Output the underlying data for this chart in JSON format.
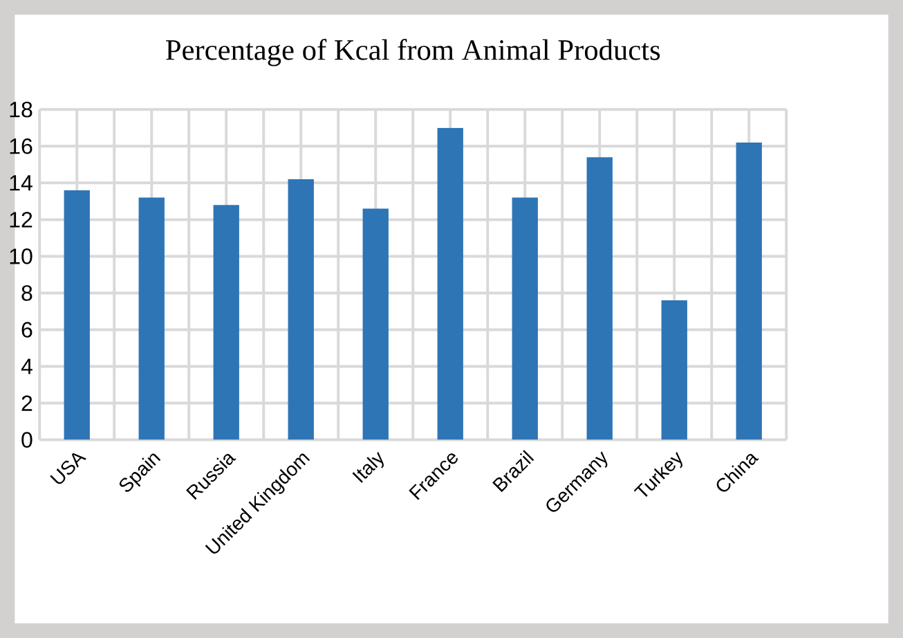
{
  "chart_data": {
    "type": "bar",
    "title": "Percentage of Kcal from Animal Products",
    "categories": [
      "USA",
      "Spain",
      "Russia",
      "United Kingdom",
      "Italy",
      "France",
      "Brazil",
      "Germany",
      "Turkey",
      "China"
    ],
    "values": [
      13.6,
      13.2,
      12.8,
      14.2,
      12.6,
      17.0,
      13.2,
      15.4,
      7.6,
      16.2
    ],
    "color": "#2e75b6",
    "ylim": [
      0,
      18
    ],
    "yticks": [
      0,
      2,
      4,
      6,
      8,
      10,
      12,
      14,
      16,
      18
    ],
    "grid": true
  }
}
